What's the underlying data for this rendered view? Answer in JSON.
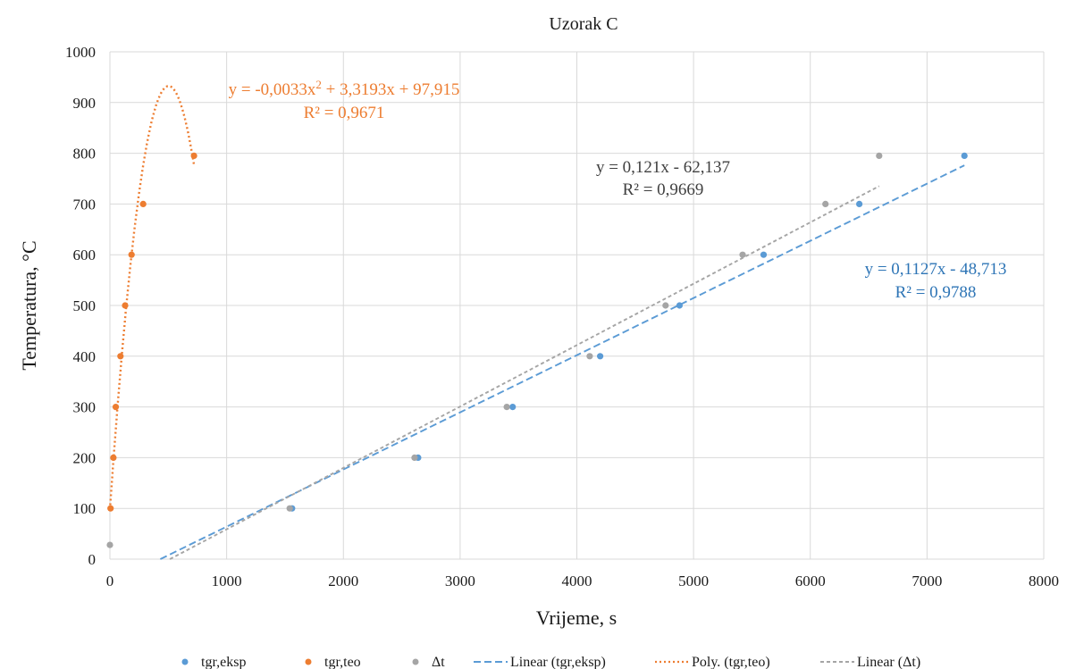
{
  "chart_data": {
    "type": "scatter",
    "title": "Uzorak C",
    "xlabel": "Vrijeme, s",
    "ylabel": "Temperatura, °C",
    "xlim": [
      0,
      8000
    ],
    "ylim": [
      0,
      1000
    ],
    "xticks": [
      "0",
      "1000",
      "2000",
      "3000",
      "4000",
      "5000",
      "6000",
      "7000",
      "8000"
    ],
    "yticks": [
      "0",
      "100",
      "200",
      "300",
      "400",
      "500",
      "600",
      "700",
      "800",
      "900",
      "1000"
    ],
    "grid": true,
    "legend_position": "bottom",
    "series": [
      {
        "name": "tgr,eksp",
        "color": "#5b9bd5",
        "points": [
          [
            1560,
            100
          ],
          [
            2640,
            200
          ],
          [
            3450,
            300
          ],
          [
            4200,
            400
          ],
          [
            4880,
            500
          ],
          [
            5600,
            600
          ],
          [
            6420,
            700
          ],
          [
            7320,
            795
          ]
        ]
      },
      {
        "name": "tgr,teo",
        "color": "#ed7d31",
        "points": [
          [
            5,
            100
          ],
          [
            30,
            200
          ],
          [
            50,
            300
          ],
          [
            90,
            400
          ],
          [
            130,
            500
          ],
          [
            185,
            600
          ],
          [
            285,
            700
          ],
          [
            720,
            795
          ]
        ]
      },
      {
        "name": "Δt",
        "color": "#a5a5a5",
        "points": [
          [
            0,
            28
          ],
          [
            1540,
            100
          ],
          [
            2610,
            200
          ],
          [
            3400,
            300
          ],
          [
            4110,
            400
          ],
          [
            4760,
            500
          ],
          [
            5420,
            600
          ],
          [
            6130,
            700
          ],
          [
            6590,
            795
          ]
        ]
      }
    ],
    "trendlines": [
      {
        "name": "Linear (tgr,eksp)",
        "kind": "linear",
        "color": "#5b9bd5",
        "style": "dashed",
        "coefficients": [
          0.1127,
          -48.713
        ],
        "x_range": [
          432,
          7320
        ],
        "equation": "y = 0,1127x - 48,713",
        "r2": "R² = 0,9788"
      },
      {
        "name": "Poly. (tgr,teo)",
        "kind": "polynomial",
        "color": "#ed7d31",
        "style": "dotted",
        "coefficients": [
          -0.0033,
          3.3193,
          97.915
        ],
        "x_range": [
          0,
          720
        ],
        "equation_parts": [
          "y = -0,0033x",
          "2",
          " + 3,3193x + 97,915"
        ],
        "r2": "R² = 0,9671"
      },
      {
        "name": "Linear (Δt)",
        "kind": "linear",
        "color": "#a5a5a5",
        "style": "dashed",
        "coefficients": [
          0.121,
          -62.137
        ],
        "x_range": [
          514,
          6590
        ],
        "equation": "y = 0,121x - 62,137",
        "r2": "R² = 0,9669"
      }
    ]
  }
}
